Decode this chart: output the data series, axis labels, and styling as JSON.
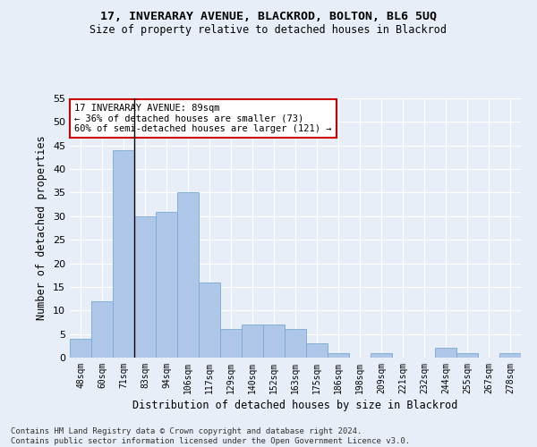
{
  "title1": "17, INVERARAY AVENUE, BLACKROD, BOLTON, BL6 5UQ",
  "title2": "Size of property relative to detached houses in Blackrod",
  "xlabel": "Distribution of detached houses by size in Blackrod",
  "ylabel": "Number of detached properties",
  "categories": [
    "48sqm",
    "60sqm",
    "71sqm",
    "83sqm",
    "94sqm",
    "106sqm",
    "117sqm",
    "129sqm",
    "140sqm",
    "152sqm",
    "163sqm",
    "175sqm",
    "186sqm",
    "198sqm",
    "209sqm",
    "221sqm",
    "232sqm",
    "244sqm",
    "255sqm",
    "267sqm",
    "278sqm"
  ],
  "values": [
    4,
    12,
    44,
    30,
    31,
    35,
    16,
    6,
    7,
    7,
    6,
    3,
    1,
    0,
    1,
    0,
    0,
    2,
    1,
    0,
    1
  ],
  "bar_color": "#aec6e8",
  "bar_edge_color": "#7aaad0",
  "annotation_line1": "17 INVERARAY AVENUE: 89sqm",
  "annotation_line2": "← 36% of detached houses are smaller (73)",
  "annotation_line3": "60% of semi-detached houses are larger (121) →",
  "annotation_box_color": "white",
  "annotation_box_edge_color": "#cc0000",
  "footer": "Contains HM Land Registry data © Crown copyright and database right 2024.\nContains public sector information licensed under the Open Government Licence v3.0.",
  "ylim": [
    0,
    55
  ],
  "background_color": "#e8eef7",
  "grid_color": "#ffffff"
}
